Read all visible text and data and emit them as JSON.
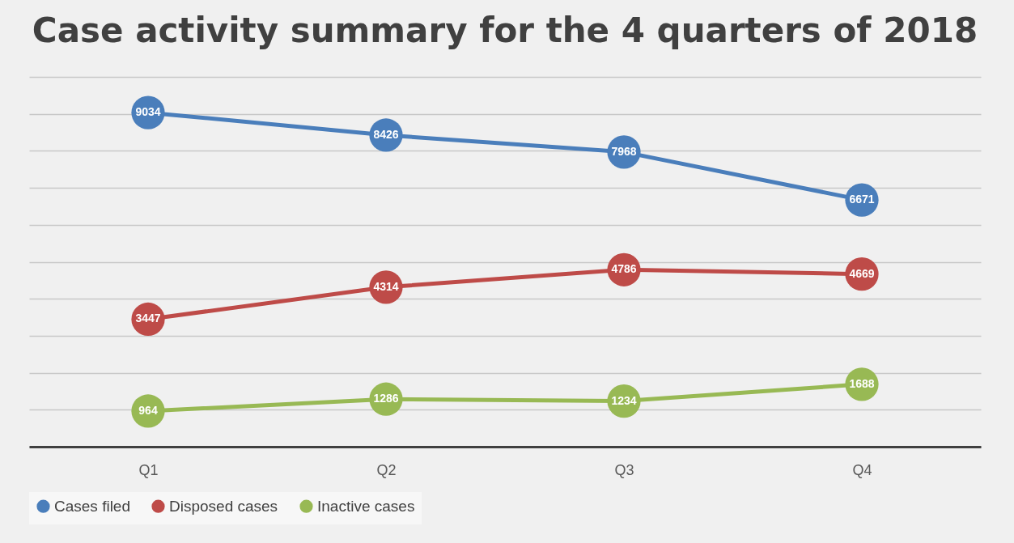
{
  "chart_data": {
    "type": "line",
    "title": "Case activity summary for the 4 quarters of 2018",
    "categories": [
      "Q1",
      "Q2",
      "Q3",
      "Q4"
    ],
    "series": [
      {
        "name": "Cases filed",
        "color": "#4a7ebb",
        "values": [
          9034,
          8426,
          7968,
          6671
        ]
      },
      {
        "name": "Disposed cases",
        "color": "#be4b48",
        "values": [
          3447,
          4314,
          4786,
          4669
        ]
      },
      {
        "name": "Inactive cases",
        "color": "#98b954",
        "values": [
          964,
          1286,
          1234,
          1688
        ]
      }
    ],
    "ylim": [
      0,
      10000
    ],
    "yticks": [
      {
        "value": 0,
        "label": null
      },
      {
        "value": 1000,
        "label": null
      },
      {
        "value": 2000,
        "label": null
      },
      {
        "value": 3000,
        "label": null
      },
      {
        "value": 4000,
        "label": null
      },
      {
        "value": 5000,
        "label": null
      },
      {
        "value": 6000,
        "label": null
      },
      {
        "value": 7000,
        "label": null
      },
      {
        "value": 8000,
        "label": null
      },
      {
        "value": 9000,
        "label": null
      },
      {
        "value": 10000,
        "label": null
      }
    ],
    "tick_labels": "x",
    "grid": "y",
    "legend": "bottom",
    "marker": "circle",
    "line_style": "solid",
    "data_labels": true
  }
}
